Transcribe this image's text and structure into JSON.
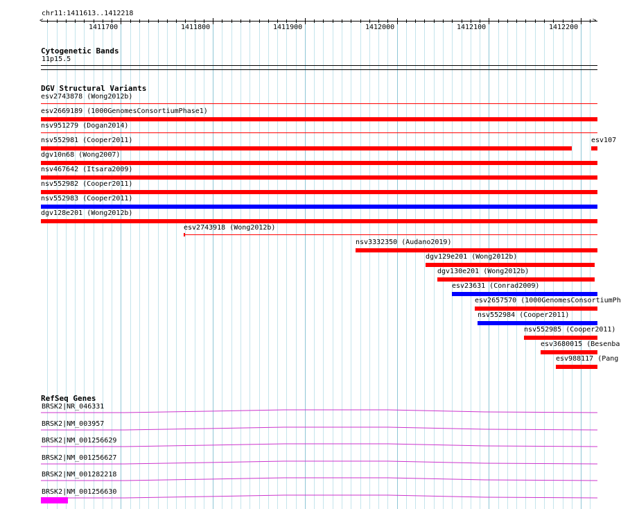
{
  "browser": {
    "location": "chr11:1411613..1412218",
    "range_start": 1411613,
    "range_end": 1412218
  },
  "ruler": {
    "labels": [
      "1411700",
      "1411800",
      "1411900",
      "1412000",
      "1412100",
      "1412200"
    ],
    "label_positions": [
      1411700,
      1411800,
      1411900,
      1412000,
      1412100,
      1412200
    ]
  },
  "colors": {
    "gridline": "#c4e4ec",
    "gridline_major": "#8ec6d6",
    "loss": "#ff0000",
    "gain": "#0000ff",
    "gene": "#cc33cc",
    "gene_block": "#ff00ff"
  },
  "cytoband": {
    "title": "Cytogenetic Bands",
    "band": "11p15.5"
  },
  "dgv": {
    "title": "DGV Structural Variants",
    "features": [
      {
        "label": "esv2743878 (Wong2012b)",
        "type": "loss",
        "start": 1411613,
        "end": 1412218,
        "style": "line"
      },
      {
        "label": "esv2669189 (1000GenomesConsortiumPhase1)",
        "type": "loss",
        "start": 1411613,
        "end": 1412218,
        "style": "bar"
      },
      {
        "label": "nsv951279 (Dogan2014)",
        "type": "loss",
        "start": 1411613,
        "end": 1412218,
        "style": "line"
      },
      {
        "label": "nsv552981 (Cooper2011)",
        "type": "loss",
        "start": 1411613,
        "end": 1412190,
        "style": "bar"
      },
      {
        "label": "esv107",
        "type": "loss",
        "start": 1412211,
        "end": 1412218,
        "style": "bar"
      },
      {
        "label": "dgv10n68 (Wong2007)",
        "type": "loss",
        "start": 1411613,
        "end": 1412218,
        "style": "bar"
      },
      {
        "label": "nsv467642 (Itsara2009)",
        "type": "loss",
        "start": 1411613,
        "end": 1412218,
        "style": "bar"
      },
      {
        "label": "nsv552982 (Cooper2011)",
        "type": "loss",
        "start": 1411613,
        "end": 1412218,
        "style": "bar"
      },
      {
        "label": "nsv552983 (Cooper2011)",
        "type": "gain",
        "start": 1411613,
        "end": 1412218,
        "style": "bar"
      },
      {
        "label": "dgv128e201 (Wong2012b)",
        "type": "loss",
        "start": 1411613,
        "end": 1412218,
        "style": "bar"
      },
      {
        "label": "esv2743918 (Wong2012b)",
        "type": "loss",
        "start": 1411768,
        "end": 1412218,
        "style": "line"
      },
      {
        "label": "nsv3332350 (Audano2019)",
        "type": "loss",
        "start": 1411955,
        "end": 1412218,
        "style": "bar"
      },
      {
        "label": "dgv129e201 (Wong2012b)",
        "type": "loss",
        "start": 1412031,
        "end": 1412215,
        "style": "bar"
      },
      {
        "label": "dgv130e201 (Wong2012b)",
        "type": "loss",
        "start": 1412044,
        "end": 1412215,
        "style": "bar"
      },
      {
        "label": "esv23631 (Conrad2009)",
        "type": "gain",
        "start": 1412060,
        "end": 1412218,
        "style": "bar"
      },
      {
        "label": "esv2657570 (1000GenomesConsortiumPh",
        "type": "loss",
        "start": 1412085,
        "end": 1412218,
        "style": "bar"
      },
      {
        "label": "nsv552984 (Cooper2011)",
        "type": "gain",
        "start": 1412088,
        "end": 1412218,
        "style": "bar"
      },
      {
        "label": "nsv552985 (Cooper2011)",
        "type": "loss",
        "start": 1412138,
        "end": 1412218,
        "style": "bar"
      },
      {
        "label": "esv3680015 (Besenba",
        "type": "loss",
        "start": 1412156,
        "end": 1412218,
        "style": "bar"
      },
      {
        "label": "esv988117 (Pang",
        "type": "loss",
        "start": 1412173,
        "end": 1412218,
        "style": "bar"
      }
    ]
  },
  "refseq": {
    "title": "RefSeq Genes",
    "genes": [
      {
        "label": "BRSK2|NR_046331",
        "block": false
      },
      {
        "label": "BRSK2|NM_003957",
        "block": false
      },
      {
        "label": "BRSK2|NM_001256629",
        "block": false
      },
      {
        "label": "BRSK2|NM_001256627",
        "block": false
      },
      {
        "label": "BRSK2|NM_001282218",
        "block": false
      },
      {
        "label": "BRSK2|NM_001256630",
        "block": true,
        "block_start": 1411613,
        "block_end": 1411635
      }
    ]
  }
}
